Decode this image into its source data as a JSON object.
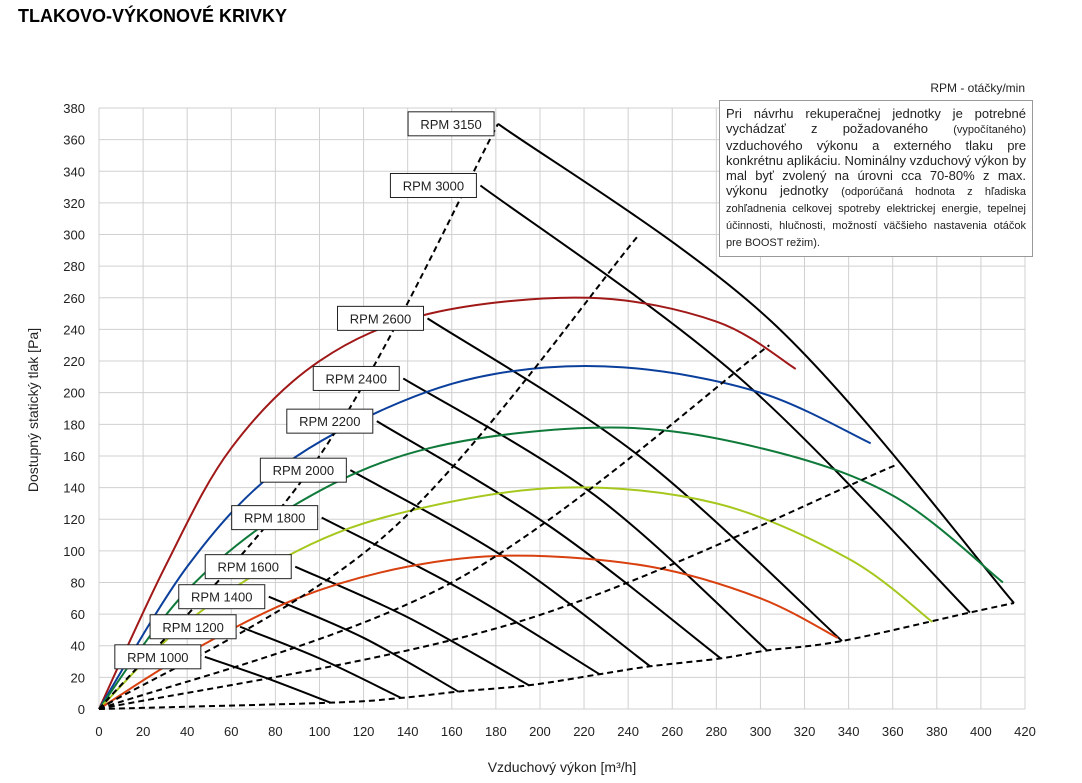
{
  "chart_data": {
    "type": "line",
    "title": "TLAKOVO-VÝKONOVÉ KRIVKY",
    "subtitle": "RPM - otáčky/min",
    "xlabel": "Vzduchový výkon [m³/h]",
    "ylabel": "Dostupný statický tlak [Pa]",
    "note": [
      "Pri návrhu rekuperačnej jednotky je potrebné vychádzať z požadovaného",
      "(vypočítaného)",
      "vzduchového výkonu a externého tlaku pre konkrétnu aplikáciu. Nominálny vzduchový výkon by mal byť zvolený na úrovni cca 70-80% z max. výkonu jednotky",
      "(odporúčaná hodnota z hľadiska zohľadnenia celkovej spotreby elektrickej energie, tepelnej účinnosti, hlučnosti, možností väčšieho nastavenia otáčok pre BOOST režim)."
    ],
    "xlim": [
      0,
      420
    ],
    "ylim": [
      0,
      380
    ],
    "xticks": [
      0,
      20,
      40,
      60,
      80,
      100,
      120,
      140,
      160,
      180,
      200,
      220,
      240,
      260,
      280,
      300,
      320,
      340,
      360,
      380,
      400,
      420
    ],
    "yticks": [
      0,
      20,
      40,
      60,
      80,
      100,
      120,
      140,
      160,
      180,
      200,
      220,
      240,
      260,
      280,
      300,
      320,
      340,
      360,
      380
    ],
    "grid": true,
    "series": [
      {
        "name": "RPM 1000",
        "color": "#000000",
        "x": [
          48,
          75,
          105
        ],
        "values": [
          33,
          20,
          4
        ]
      },
      {
        "name": "RPM 1200",
        "color": "#000000",
        "x": [
          64,
          100,
          137
        ],
        "values": [
          52,
          32,
          7
        ]
      },
      {
        "name": "RPM 1400",
        "color": "#000000",
        "x": [
          77,
          120,
          163
        ],
        "values": [
          71,
          45,
          11
        ]
      },
      {
        "name": "RPM 1600",
        "color": "#000000",
        "x": [
          89,
          140,
          195
        ],
        "values": [
          90,
          58,
          15
        ]
      },
      {
        "name": "RPM 1800",
        "color": "#000000",
        "x": [
          101,
          165,
          227
        ],
        "values": [
          121,
          75,
          22
        ]
      },
      {
        "name": "RPM 2000",
        "color": "#000000",
        "x": [
          114,
          185,
          250
        ],
        "values": [
          151,
          95,
          27
        ]
      },
      {
        "name": "RPM 2200",
        "color": "#000000",
        "x": [
          126,
          205,
          282
        ],
        "values": [
          182,
          115,
          32
        ]
      },
      {
        "name": "RPM 2400",
        "color": "#000000",
        "x": [
          138,
          225,
          303
        ],
        "values": [
          209,
          135,
          37
        ]
      },
      {
        "name": "RPM 2600",
        "color": "#000000",
        "x": [
          149,
          245,
          337
        ],
        "values": [
          247,
          160,
          43
        ]
      },
      {
        "name": "RPM 3000",
        "color": "#000000",
        "x": [
          173,
          290,
          395
        ],
        "values": [
          331,
          210,
          61
        ]
      },
      {
        "name": "RPM 3150",
        "color": "#000000",
        "x": [
          181,
          305,
          415
        ],
        "values": [
          370,
          245,
          67
        ]
      },
      {
        "color": "#a01818",
        "x": [
          0,
          30,
          60,
          100,
          150,
          222,
          280,
          316
        ],
        "values": [
          0,
          90,
          165,
          220,
          250,
          260,
          245,
          215
        ]
      },
      {
        "color": "#0b3f9c",
        "x": [
          0,
          40,
          80,
          130,
          180,
          238,
          300,
          350
        ],
        "values": [
          0,
          90,
          150,
          190,
          212,
          216,
          200,
          168
        ]
      },
      {
        "color": "#0f7a3a",
        "x": [
          0,
          40,
          90,
          150,
          232,
          300,
          360,
          410
        ],
        "values": [
          0,
          75,
          130,
          165,
          178,
          165,
          135,
          80
        ]
      },
      {
        "color": "#a6c81e",
        "x": [
          0,
          40,
          90,
          140,
          210,
          280,
          340,
          378
        ],
        "values": [
          0,
          55,
          100,
          125,
          140,
          130,
          95,
          55
        ]
      },
      {
        "color": "#d8400f",
        "x": [
          0,
          40,
          90,
          140,
          190,
          250,
          300,
          335
        ],
        "values": [
          0,
          35,
          70,
          90,
          97,
          90,
          70,
          45
        ]
      },
      {
        "color": "#000000",
        "dash": true,
        "x": [
          0,
          100,
          181
        ],
        "values": [
          0,
          160,
          370
        ]
      },
      {
        "color": "#000000",
        "dash": true,
        "x": [
          0,
          130,
          245
        ],
        "values": [
          0,
          110,
          300
        ]
      },
      {
        "color": "#000000",
        "dash": true,
        "x": [
          0,
          160,
          304
        ],
        "values": [
          0,
          80,
          230
        ]
      },
      {
        "color": "#000000",
        "dash": true,
        "x": [
          0,
          190,
          361
        ],
        "values": [
          0,
          55,
          154
        ]
      },
      {
        "color": "#000000",
        "dash": true,
        "x": [
          0,
          105,
          137,
          163,
          195,
          227,
          250,
          282,
          303,
          337,
          395,
          415
        ],
        "values": [
          0,
          4,
          7,
          11,
          15,
          22,
          27,
          32,
          37,
          43,
          61,
          67
        ]
      }
    ]
  }
}
